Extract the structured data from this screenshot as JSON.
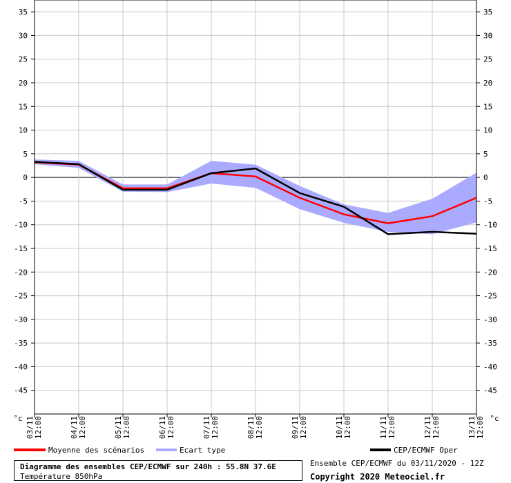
{
  "chart_data": {
    "type": "line",
    "title": "Diagramme des ensembles CEP/ECMWF sur 240h : 55.8N 37.6E",
    "subtitle": "Température 850hPa",
    "unit": "°c",
    "ylim": [
      -50,
      37.5
    ],
    "yticks": [
      35,
      30,
      25,
      20,
      15,
      10,
      5,
      0,
      -5,
      -10,
      -15,
      -20,
      -25,
      -30,
      -35,
      -40,
      -45
    ],
    "x": [
      "03/11 12:00",
      "04/11 12:00",
      "05/11 12:00",
      "06/11 12:00",
      "07/11 12:00",
      "08/11 12:00",
      "09/11 12:00",
      "10/11 12:00",
      "11/11 12:00",
      "12/11 12:00",
      "13/11 12:00"
    ],
    "x_labels": [
      {
        "date": "03/11",
        "time": "12:00"
      },
      {
        "date": "04/11",
        "time": "12:00"
      },
      {
        "date": "05/11",
        "time": "12:00"
      },
      {
        "date": "06/11",
        "time": "12:00"
      },
      {
        "date": "07/11",
        "time": "12:00"
      },
      {
        "date": "08/11",
        "time": "12:00"
      },
      {
        "date": "09/11",
        "time": "12:00"
      },
      {
        "date": "10/11",
        "time": "12:00"
      },
      {
        "date": "11/11",
        "time": "12:00"
      },
      {
        "date": "12/11",
        "time": "12:00"
      },
      {
        "date": "13/11",
        "time": "12:00"
      }
    ],
    "grid": true,
    "series": [
      {
        "name": "Moyenne des scénarios",
        "color": "#ff0000",
        "points": [
          [
            0,
            3.2
          ],
          [
            1,
            2.7
          ],
          [
            2,
            -2.3
          ],
          [
            3,
            -2.3
          ],
          [
            4,
            0.9
          ],
          [
            5,
            0.2
          ],
          [
            6,
            -4.3
          ],
          [
            7,
            -7.8
          ],
          [
            8,
            -9.7
          ],
          [
            9,
            -8.2
          ],
          [
            10,
            -4.3
          ]
        ]
      },
      {
        "name": "Ecart type",
        "color": "#aaaaff",
        "kind": "band",
        "upper": [
          [
            0,
            3.8
          ],
          [
            1,
            3.5
          ],
          [
            2,
            -1.5
          ],
          [
            3,
            -1.5
          ],
          [
            4,
            3.5
          ],
          [
            5,
            2.7
          ],
          [
            6,
            -1.8
          ],
          [
            7,
            -5.7
          ],
          [
            8,
            -7.5
          ],
          [
            9,
            -4.5
          ],
          [
            10,
            1.0
          ]
        ],
        "lower": [
          [
            0,
            2.8
          ],
          [
            1,
            2.0
          ],
          [
            2,
            -3.0
          ],
          [
            3,
            -3.1
          ],
          [
            4,
            -1.3
          ],
          [
            5,
            -2.2
          ],
          [
            6,
            -6.7
          ],
          [
            7,
            -9.6
          ],
          [
            8,
            -11.5
          ],
          [
            9,
            -12.0
          ],
          [
            10,
            -9.5
          ]
        ]
      },
      {
        "name": "CEP/ECMWF Oper",
        "color": "#000000",
        "points": [
          [
            0,
            3.3
          ],
          [
            1,
            2.8
          ],
          [
            2,
            -2.6
          ],
          [
            3,
            -2.6
          ],
          [
            4,
            0.9
          ],
          [
            5,
            1.9
          ],
          [
            6,
            -3.3
          ],
          [
            7,
            -6.2
          ],
          [
            8,
            -12.0
          ],
          [
            9,
            -11.5
          ],
          [
            10,
            -11.9
          ]
        ]
      }
    ]
  },
  "footer": {
    "title": "Diagramme des ensembles CEP/ECMWF sur 240h : 55.8N 37.6E",
    "subtitle": "Température 850hPa",
    "info": "Ensemble CEP/ECMWF du 03/11/2020 - 12Z",
    "copyright": "Copyright 2020 Meteociel.fr"
  }
}
